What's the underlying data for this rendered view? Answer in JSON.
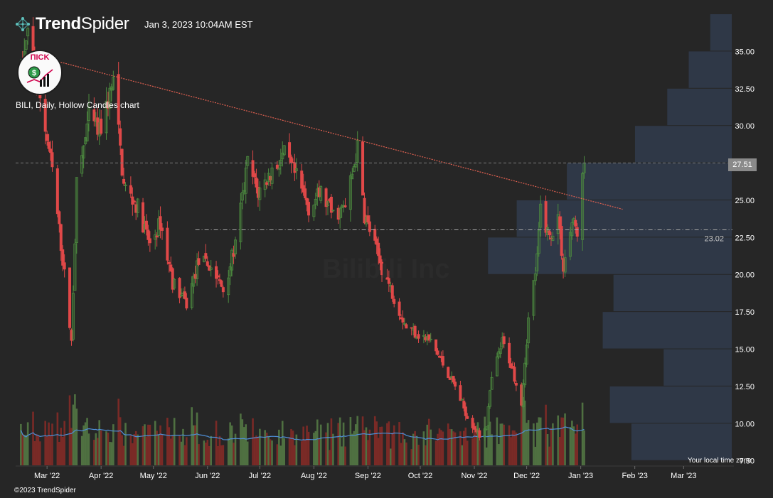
{
  "header": {
    "brand_bold": "Trend",
    "brand_light": "Spider",
    "timestamp": "Jan 3, 2023 10:04AM EST"
  },
  "avatar": {
    "label": "ПICK"
  },
  "chart_description": "BILI, Daily, Hollow Candles chart",
  "watermark": "Bilibili Inc",
  "footer": {
    "timezone": "Your local time zone",
    "copyright": "©2023 TrendSpider"
  },
  "colors": {
    "background": "#262626",
    "up": "#4c8a3f",
    "down": "#e04848",
    "volume_up": "#4f7041",
    "volume_down": "#7a2a26",
    "volume_ma": "#4f8fd8",
    "trendline": "#e06050",
    "volume_profile": "#2f3847",
    "reference_line": "#a8a8a8"
  },
  "chart_data": {
    "type": "candlestick",
    "symbol": "BILI",
    "interval": "Daily",
    "style": "Hollow Candles",
    "x_ticks": [
      "Mar '22",
      "Apr '22",
      "May '22",
      "Jun '22",
      "Jul '22",
      "Aug '22",
      "Sep '22",
      "Oct '22",
      "Nov '22",
      "Dec '22",
      "Jan '23",
      "Feb '23",
      "Mar '23"
    ],
    "y_ticks": [
      "35.00",
      "32.50",
      "30.00",
      "27.50",
      "25.00",
      "22.50",
      "20.00",
      "17.50",
      "15.00",
      "12.50",
      "10.00",
      "7.50"
    ],
    "ylim": [
      7.2,
      37.5
    ],
    "last_price": "27.51",
    "horizontal_level": {
      "value": 23.02,
      "label": "23.02"
    },
    "trendline": {
      "start": [
        "2022-02-23",
        34.7
      ],
      "end": [
        "2023-01-25",
        24.4
      ]
    },
    "volume_profile": [
      {
        "low": 35.0,
        "high": 37.5,
        "volume": 0.06
      },
      {
        "low": 32.5,
        "high": 35.0,
        "volume": 0.12
      },
      {
        "low": 30.0,
        "high": 32.5,
        "volume": 0.18
      },
      {
        "low": 27.5,
        "high": 30.0,
        "volume": 0.27
      },
      {
        "low": 25.0,
        "high": 27.5,
        "volume": 0.46
      },
      {
        "low": 22.5,
        "high": 25.0,
        "volume": 0.6
      },
      {
        "low": 20.0,
        "high": 22.5,
        "volume": 0.68
      },
      {
        "low": 17.5,
        "high": 20.0,
        "volume": 0.33
      },
      {
        "low": 15.0,
        "high": 17.5,
        "volume": 0.36
      },
      {
        "low": 12.5,
        "high": 15.0,
        "volume": 0.19
      },
      {
        "low": 10.0,
        "high": 12.5,
        "volume": 0.34
      },
      {
        "low": 7.5,
        "high": 10.0,
        "volume": 0.28
      }
    ],
    "price_path": [
      [
        "2022-02-14",
        33.5
      ],
      [
        "2022-02-18",
        36.0
      ],
      [
        "2022-02-25",
        32.0
      ],
      [
        "2022-03-04",
        27.0
      ],
      [
        "2022-03-11",
        20.0
      ],
      [
        "2022-03-15",
        15.5
      ],
      [
        "2022-03-18",
        26.0
      ],
      [
        "2022-03-25",
        30.5
      ],
      [
        "2022-03-31",
        29.5
      ],
      [
        "2022-04-08",
        33.0
      ],
      [
        "2022-04-14",
        26.0
      ],
      [
        "2022-04-22",
        24.5
      ],
      [
        "2022-04-29",
        22.0
      ],
      [
        "2022-05-05",
        23.5
      ],
      [
        "2022-05-12",
        19.5
      ],
      [
        "2022-05-20",
        18.0
      ],
      [
        "2022-05-27",
        21.0
      ],
      [
        "2022-06-03",
        20.5
      ],
      [
        "2022-06-10",
        19.0
      ],
      [
        "2022-06-17",
        22.0
      ],
      [
        "2022-06-24",
        27.5
      ],
      [
        "2022-06-30",
        25.5
      ],
      [
        "2022-07-08",
        27.0
      ],
      [
        "2022-07-15",
        28.0
      ],
      [
        "2022-07-22",
        26.5
      ],
      [
        "2022-07-29",
        24.5
      ],
      [
        "2022-08-05",
        25.5
      ],
      [
        "2022-08-12",
        24.0
      ],
      [
        "2022-08-19",
        24.5
      ],
      [
        "2022-08-26",
        28.5
      ],
      [
        "2022-08-30",
        24.0
      ],
      [
        "2022-09-02",
        23.0
      ],
      [
        "2022-09-09",
        20.5
      ],
      [
        "2022-09-16",
        18.5
      ],
      [
        "2022-09-23",
        16.5
      ],
      [
        "2022-09-30",
        16.0
      ],
      [
        "2022-10-07",
        15.5
      ],
      [
        "2022-10-14",
        14.0
      ],
      [
        "2022-10-21",
        12.5
      ],
      [
        "2022-10-28",
        10.5
      ],
      [
        "2022-11-04",
        9.2
      ],
      [
        "2022-11-08",
        10.0
      ],
      [
        "2022-11-11",
        13.0
      ],
      [
        "2022-11-17",
        15.5
      ],
      [
        "2022-11-22",
        14.0
      ],
      [
        "2022-11-28",
        11.5
      ],
      [
        "2022-12-02",
        17.0
      ],
      [
        "2022-12-07",
        21.0
      ],
      [
        "2022-12-09",
        24.5
      ],
      [
        "2022-12-14",
        22.5
      ],
      [
        "2022-12-19",
        24.0
      ],
      [
        "2022-12-22",
        20.5
      ],
      [
        "2022-12-27",
        23.5
      ],
      [
        "2022-12-30",
        23.0
      ],
      [
        "2023-01-03",
        27.5
      ]
    ]
  }
}
